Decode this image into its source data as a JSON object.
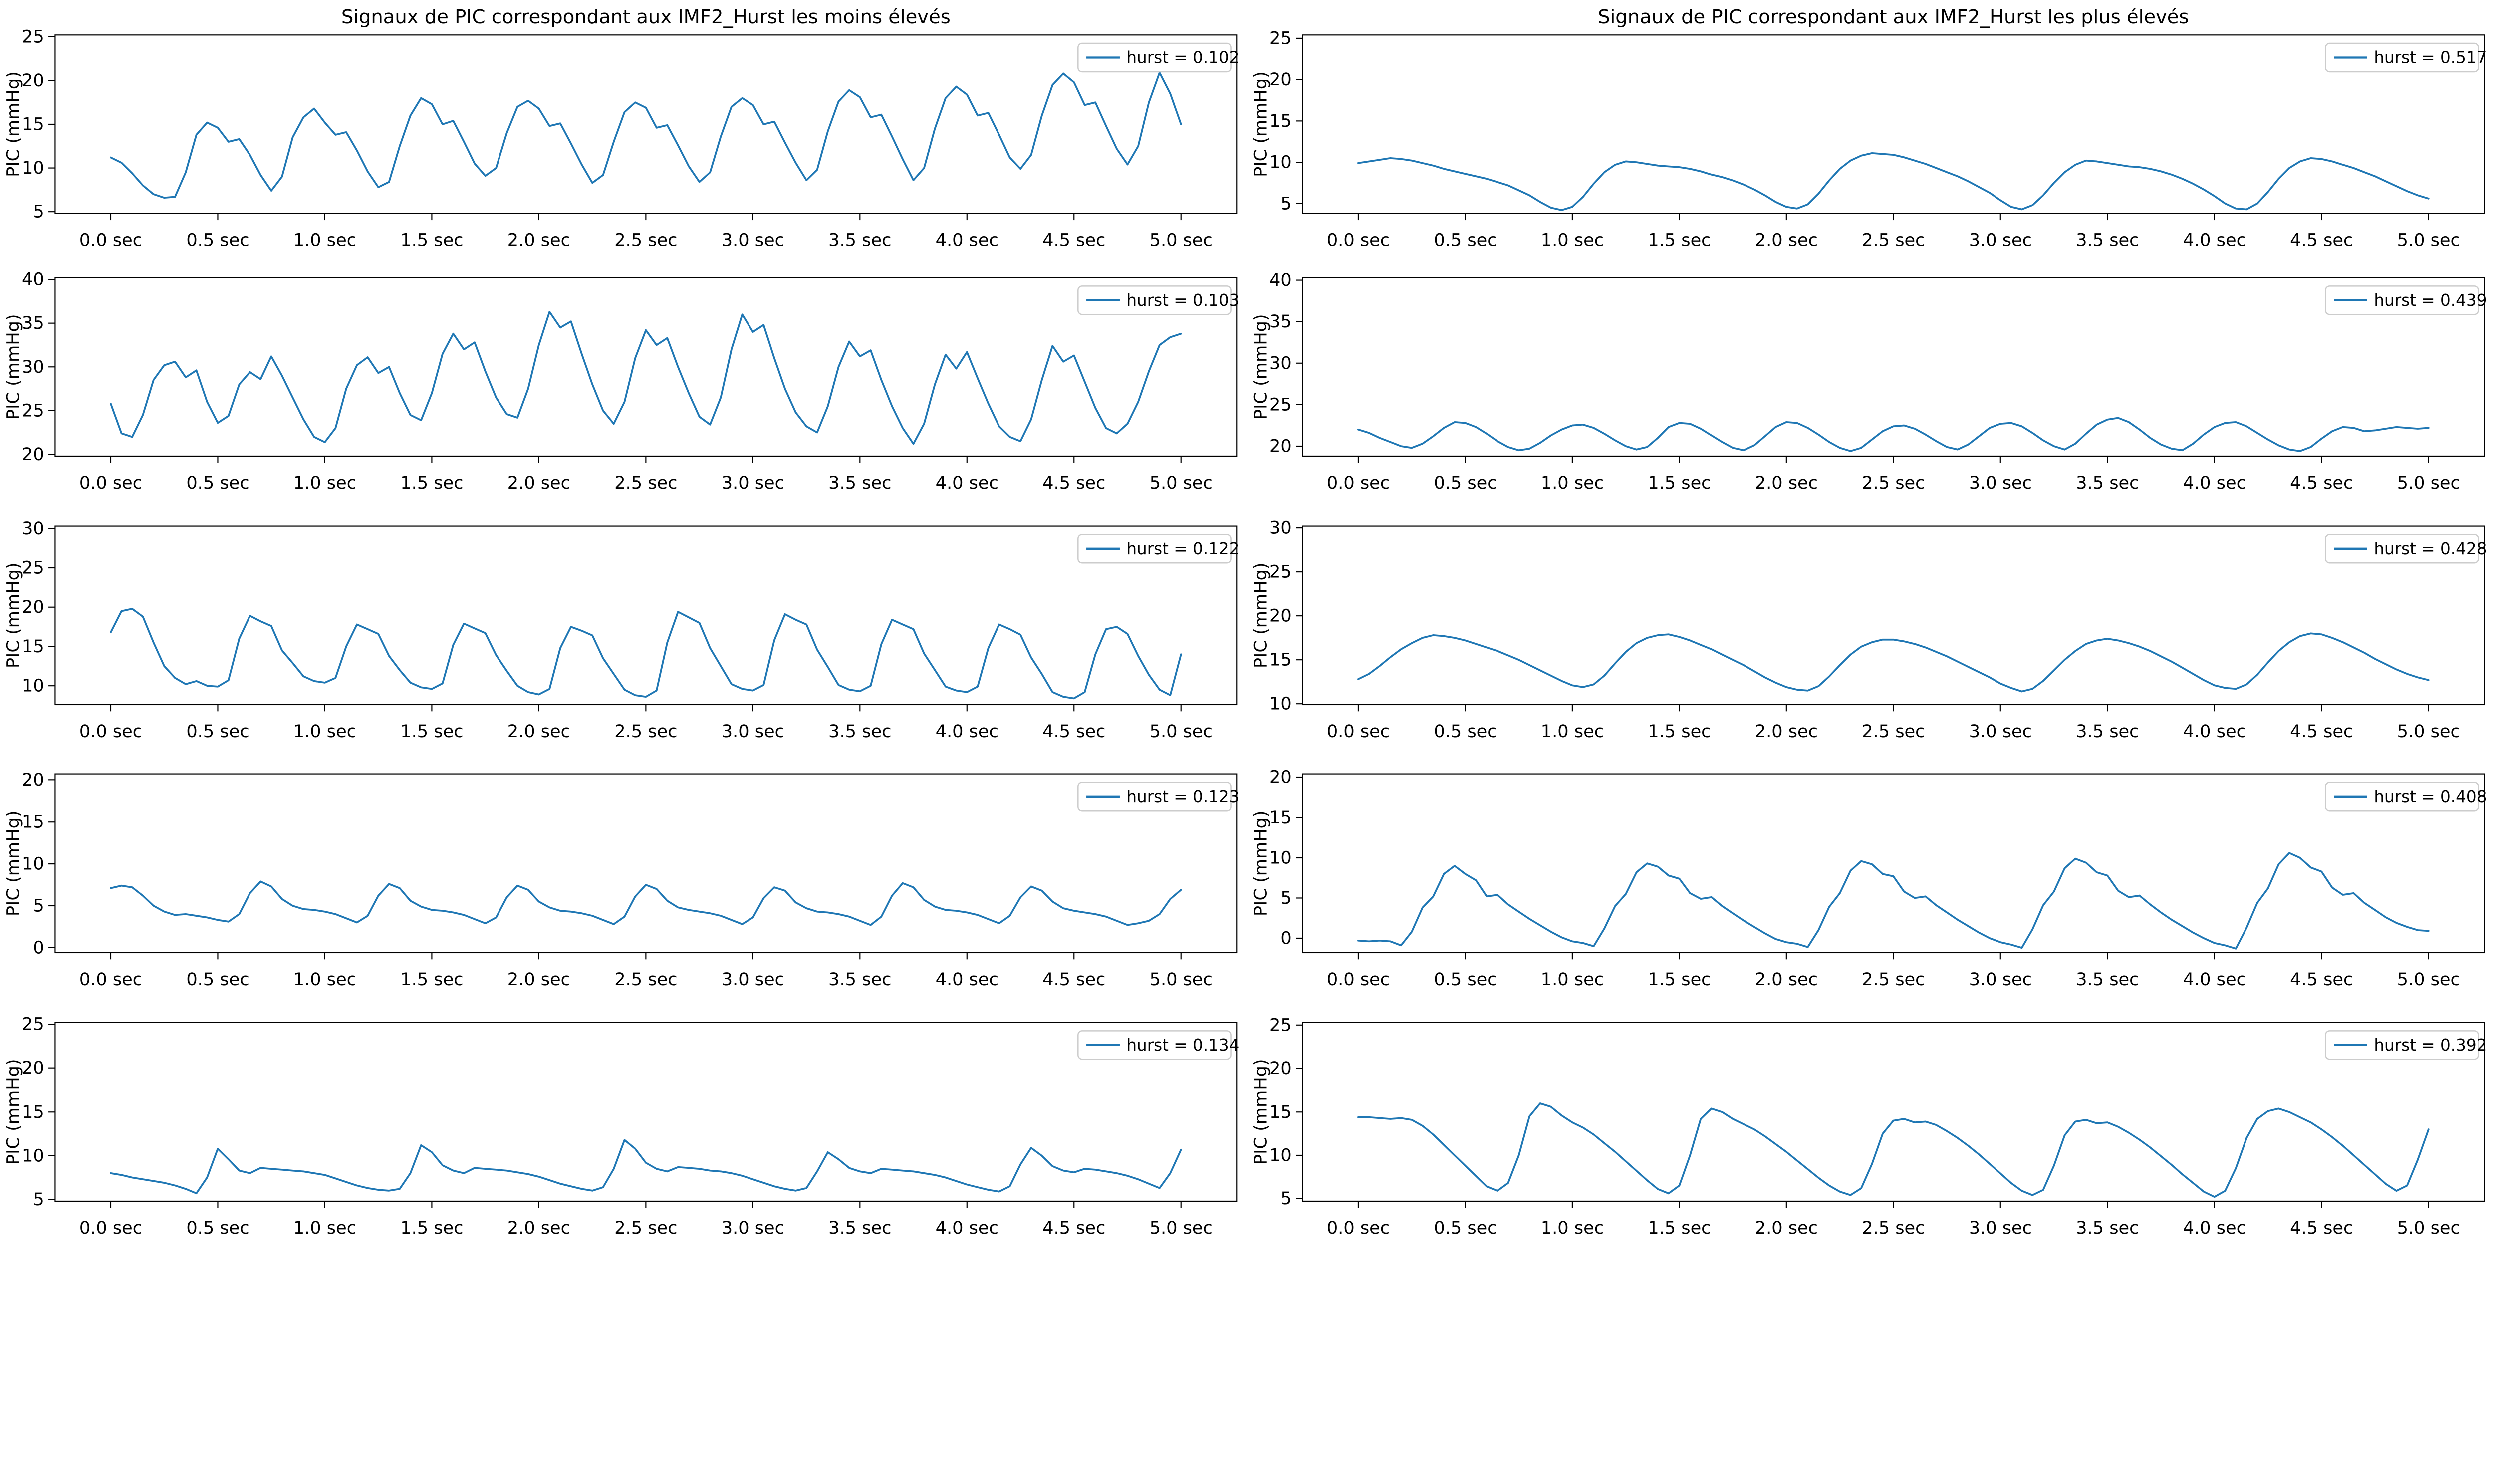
{
  "figure": {
    "background": "#ffffff",
    "text_color": "#000000",
    "line_color": "#1f77b4",
    "legend_border_color": "#cccccc",
    "legend_position": "upper right",
    "grid": false,
    "ylabel": "PIC  (mmHg)",
    "xtick_labels": [
      "0.0 sec",
      "0.5 sec",
      "1.0 sec",
      "1.5 sec",
      "2.0 sec",
      "2.5 sec",
      "3.0 sec",
      "3.5 sec",
      "4.0 sec",
      "4.5 sec",
      "5.0 sec"
    ],
    "xtick_values": [
      0,
      0.5,
      1,
      1.5,
      2,
      2.5,
      3,
      3.5,
      4,
      4.5,
      5
    ],
    "columns": [
      {
        "title": "Signaux de PIC correspondant  aux IMF2_Hurst les moins élevés"
      },
      {
        "title": "Signaux de PIC correspondant aux IMF2_Hurst les plus élevés"
      }
    ]
  },
  "chart_data": [
    {
      "type": "line",
      "column": 0,
      "row": 0,
      "legend": "hurst = 0.102",
      "hurst": 0.102,
      "ylabel": "PIC  (mmHg)",
      "yticks": [
        5,
        10,
        15,
        20,
        25
      ],
      "ylim": [
        4.8,
        25.2
      ],
      "xlim": [
        -0.26,
        5.26
      ],
      "x_start": 0,
      "x_step": 0.05,
      "x_unit": "sec",
      "y_mmHg": [
        11.2,
        10.6,
        9.4,
        8.0,
        7.0,
        6.6,
        6.7,
        9.5,
        13.8,
        15.2,
        14.6,
        13.0,
        13.3,
        11.5,
        9.2,
        7.4,
        9.0,
        13.5,
        15.8,
        16.8,
        15.2,
        13.8,
        14.1,
        12.0,
        9.6,
        7.8,
        8.4,
        12.5,
        16.0,
        18.0,
        17.3,
        15.0,
        15.4,
        13.0,
        10.5,
        9.1,
        10.0,
        14.0,
        17.0,
        17.7,
        16.8,
        14.8,
        15.1,
        12.8,
        10.4,
        8.3,
        9.2,
        13.0,
        16.4,
        17.5,
        16.9,
        14.6,
        14.9,
        12.6,
        10.2,
        8.4,
        9.5,
        13.6,
        17.0,
        18.0,
        17.2,
        15.0,
        15.3,
        12.9,
        10.6,
        8.6,
        9.8,
        14.2,
        17.6,
        18.9,
        18.1,
        15.8,
        16.1,
        13.6,
        11.0,
        8.6,
        10.0,
        14.5,
        18.0,
        19.3,
        18.4,
        16.0,
        16.3,
        13.8,
        11.2,
        9.9,
        11.5,
        16.0,
        19.5,
        20.8,
        19.8,
        17.2,
        17.5,
        14.8,
        12.2,
        10.4,
        12.5,
        17.5,
        20.9,
        18.5,
        15.0
      ]
    },
    {
      "type": "line",
      "column": 0,
      "row": 1,
      "legend": "hurst = 0.103",
      "hurst": 0.103,
      "ylabel": "PIC  (mmHg)",
      "yticks": [
        20,
        25,
        30,
        35,
        40
      ],
      "ylim": [
        19.8,
        40.2
      ],
      "xlim": [
        -0.26,
        5.26
      ],
      "x_start": 0,
      "x_step": 0.05,
      "x_unit": "sec",
      "y_mmHg": [
        25.8,
        22.4,
        22.0,
        24.5,
        28.5,
        30.2,
        30.6,
        28.8,
        29.6,
        26.0,
        23.6,
        24.4,
        28.0,
        29.4,
        28.6,
        31.2,
        29.0,
        26.5,
        24.0,
        22.0,
        21.4,
        23.0,
        27.5,
        30.2,
        31.1,
        29.3,
        30.0,
        27.0,
        24.5,
        23.9,
        27.0,
        31.5,
        33.8,
        32.0,
        32.8,
        29.5,
        26.5,
        24.6,
        24.2,
        27.5,
        32.5,
        36.3,
        34.5,
        35.2,
        31.5,
        28.0,
        25.0,
        23.5,
        26.0,
        31.0,
        34.2,
        32.5,
        33.3,
        30.0,
        27.0,
        24.3,
        23.4,
        26.5,
        32.0,
        36.0,
        34.0,
        34.8,
        31.0,
        27.5,
        24.8,
        23.2,
        22.5,
        25.5,
        30.0,
        32.9,
        31.2,
        31.9,
        28.5,
        25.5,
        23.0,
        21.2,
        23.5,
        28.0,
        31.4,
        29.8,
        31.7,
        28.7,
        25.8,
        23.2,
        22.0,
        21.5,
        24.0,
        28.5,
        32.4,
        30.6,
        31.3,
        28.3,
        25.3,
        23.0,
        22.4,
        23.5,
        26.0,
        29.5,
        32.5,
        33.4,
        33.8
      ]
    },
    {
      "type": "line",
      "column": 0,
      "row": 2,
      "legend": "hurst = 0.122",
      "hurst": 0.122,
      "ylabel": "PIC  (mmHg)",
      "yticks": [
        10,
        15,
        20,
        25,
        30
      ],
      "ylim": [
        7.6,
        30.3
      ],
      "xlim": [
        -0.26,
        5.26
      ],
      "x_start": 0,
      "x_step": 0.05,
      "x_unit": "sec",
      "y_mmHg": [
        16.8,
        19.5,
        19.8,
        18.8,
        15.5,
        12.5,
        11.0,
        10.2,
        10.6,
        10.0,
        9.9,
        10.7,
        16.0,
        18.9,
        18.2,
        17.6,
        14.5,
        12.9,
        11.2,
        10.6,
        10.4,
        11.0,
        15.0,
        17.8,
        17.2,
        16.6,
        13.8,
        12.0,
        10.4,
        9.8,
        9.6,
        10.3,
        15.2,
        17.9,
        17.3,
        16.7,
        13.9,
        11.9,
        10.0,
        9.2,
        8.9,
        9.6,
        14.8,
        17.5,
        17.0,
        16.4,
        13.5,
        11.5,
        9.5,
        8.8,
        8.6,
        9.4,
        15.5,
        19.4,
        18.7,
        18.0,
        14.8,
        12.5,
        10.2,
        9.6,
        9.4,
        10.1,
        15.8,
        19.1,
        18.4,
        17.8,
        14.6,
        12.4,
        10.1,
        9.5,
        9.3,
        10.0,
        15.3,
        18.4,
        17.8,
        17.2,
        14.1,
        12.0,
        9.9,
        9.4,
        9.2,
        9.9,
        14.8,
        17.8,
        17.2,
        16.5,
        13.6,
        11.5,
        9.2,
        8.6,
        8.4,
        9.2,
        14.0,
        17.2,
        17.5,
        16.6,
        13.8,
        11.4,
        9.5,
        8.8,
        14.0
      ]
    },
    {
      "type": "line",
      "column": 0,
      "row": 3,
      "legend": "hurst = 0.123",
      "hurst": 0.123,
      "ylabel": "PIC  (mmHg)",
      "yticks": [
        0,
        5,
        10,
        15,
        20
      ],
      "ylim": [
        -0.6,
        20.7
      ],
      "xlim": [
        -0.26,
        5.26
      ],
      "x_start": 0,
      "x_step": 0.05,
      "x_unit": "sec",
      "y_mmHg": [
        7.1,
        7.4,
        7.2,
        6.2,
        5.0,
        4.3,
        3.9,
        4.0,
        3.8,
        3.6,
        3.3,
        3.1,
        4.0,
        6.5,
        7.9,
        7.3,
        5.8,
        5.0,
        4.6,
        4.5,
        4.3,
        4.0,
        3.5,
        3.0,
        3.8,
        6.2,
        7.6,
        7.1,
        5.6,
        4.9,
        4.5,
        4.4,
        4.2,
        3.9,
        3.4,
        2.9,
        3.6,
        6.0,
        7.4,
        6.9,
        5.5,
        4.8,
        4.4,
        4.3,
        4.1,
        3.8,
        3.3,
        2.8,
        3.7,
        6.1,
        7.5,
        7.0,
        5.6,
        4.8,
        4.5,
        4.3,
        4.1,
        3.8,
        3.3,
        2.8,
        3.6,
        5.9,
        7.2,
        6.8,
        5.4,
        4.7,
        4.3,
        4.2,
        4.0,
        3.7,
        3.2,
        2.7,
        3.7,
        6.2,
        7.7,
        7.2,
        5.7,
        4.9,
        4.5,
        4.4,
        4.2,
        3.9,
        3.4,
        2.9,
        3.8,
        6.0,
        7.3,
        6.8,
        5.5,
        4.7,
        4.4,
        4.2,
        4.0,
        3.7,
        3.2,
        2.7,
        2.9,
        3.2,
        4.0,
        5.8,
        6.9
      ]
    },
    {
      "type": "line",
      "column": 0,
      "row": 4,
      "legend": "hurst = 0.134",
      "hurst": 0.134,
      "ylabel": "PIC  (mmHg)",
      "yticks": [
        5,
        10,
        15,
        20,
        25
      ],
      "ylim": [
        4.8,
        25.2
      ],
      "xlim": [
        -0.26,
        5.26
      ],
      "x_start": 0,
      "x_step": 0.05,
      "x_unit": "sec",
      "y_mmHg": [
        8.0,
        7.8,
        7.5,
        7.3,
        7.1,
        6.9,
        6.6,
        6.2,
        5.7,
        7.5,
        10.8,
        9.6,
        8.3,
        8.0,
        8.6,
        8.5,
        8.4,
        8.3,
        8.2,
        8.0,
        7.8,
        7.4,
        7.0,
        6.6,
        6.3,
        6.1,
        6.0,
        6.2,
        8.0,
        11.2,
        10.4,
        8.9,
        8.3,
        8.0,
        8.6,
        8.5,
        8.4,
        8.3,
        8.1,
        7.9,
        7.6,
        7.2,
        6.8,
        6.5,
        6.2,
        6.0,
        6.4,
        8.5,
        11.8,
        10.8,
        9.2,
        8.5,
        8.2,
        8.7,
        8.6,
        8.5,
        8.3,
        8.2,
        8.0,
        7.7,
        7.3,
        6.9,
        6.5,
        6.2,
        6.0,
        6.3,
        8.2,
        10.4,
        9.6,
        8.6,
        8.2,
        8.0,
        8.5,
        8.4,
        8.3,
        8.2,
        8.0,
        7.8,
        7.5,
        7.1,
        6.7,
        6.4,
        6.1,
        5.9,
        6.5,
        9.0,
        10.9,
        10.0,
        8.8,
        8.3,
        8.1,
        8.5,
        8.4,
        8.2,
        8.0,
        7.7,
        7.3,
        6.8,
        6.3,
        8.0,
        10.7
      ]
    },
    {
      "type": "line",
      "column": 1,
      "row": 0,
      "legend": "hurst = 0.517",
      "hurst": 0.517,
      "ylabel": "PIC  (mmHg)",
      "yticks": [
        5,
        10,
        15,
        20,
        25
      ],
      "ylim": [
        3.8,
        25.4
      ],
      "xlim": [
        -0.26,
        5.26
      ],
      "x_start": 0,
      "x_step": 0.05,
      "x_unit": "sec",
      "y_mmHg": [
        9.9,
        10.1,
        10.3,
        10.5,
        10.4,
        10.2,
        9.9,
        9.6,
        9.2,
        8.9,
        8.6,
        8.3,
        8.0,
        7.6,
        7.2,
        6.6,
        6.0,
        5.2,
        4.5,
        4.2,
        4.6,
        5.8,
        7.4,
        8.8,
        9.7,
        10.1,
        10.0,
        9.8,
        9.6,
        9.5,
        9.4,
        9.2,
        8.9,
        8.5,
        8.2,
        7.8,
        7.3,
        6.7,
        6.0,
        5.2,
        4.6,
        4.4,
        4.9,
        6.2,
        7.8,
        9.2,
        10.2,
        10.8,
        11.1,
        11.0,
        10.9,
        10.6,
        10.2,
        9.8,
        9.3,
        8.8,
        8.3,
        7.7,
        7.0,
        6.3,
        5.4,
        4.6,
        4.3,
        4.8,
        6.0,
        7.5,
        8.8,
        9.7,
        10.2,
        10.1,
        9.9,
        9.7,
        9.5,
        9.4,
        9.2,
        8.9,
        8.5,
        8.0,
        7.4,
        6.7,
        5.9,
        5.0,
        4.4,
        4.3,
        5.0,
        6.4,
        8.0,
        9.3,
        10.1,
        10.5,
        10.4,
        10.1,
        9.7,
        9.3,
        8.8,
        8.3,
        7.7,
        7.1,
        6.5,
        6.0,
        5.6
      ]
    },
    {
      "type": "line",
      "column": 1,
      "row": 1,
      "legend": "hurst = 0.439",
      "hurst": 0.439,
      "ylabel": "PIC  (mmHg)",
      "yticks": [
        20,
        25,
        30,
        35,
        40
      ],
      "ylim": [
        18.8,
        40.3
      ],
      "xlim": [
        -0.26,
        5.26
      ],
      "x_start": 0,
      "x_step": 0.05,
      "x_unit": "sec",
      "y_mmHg": [
        22.0,
        21.6,
        21.0,
        20.5,
        20.0,
        19.8,
        20.3,
        21.2,
        22.2,
        22.9,
        22.8,
        22.3,
        21.5,
        20.6,
        19.9,
        19.5,
        19.7,
        20.4,
        21.3,
        22.0,
        22.5,
        22.6,
        22.2,
        21.5,
        20.7,
        20.0,
        19.6,
        19.9,
        21.0,
        22.3,
        22.8,
        22.7,
        22.1,
        21.3,
        20.5,
        19.8,
        19.5,
        20.1,
        21.2,
        22.3,
        22.9,
        22.8,
        22.2,
        21.4,
        20.5,
        19.8,
        19.4,
        19.8,
        20.8,
        21.8,
        22.4,
        22.5,
        22.1,
        21.4,
        20.6,
        19.9,
        19.6,
        20.2,
        21.2,
        22.2,
        22.7,
        22.8,
        22.4,
        21.6,
        20.7,
        20.0,
        19.6,
        20.3,
        21.5,
        22.6,
        23.2,
        23.4,
        22.9,
        22.0,
        21.0,
        20.2,
        19.7,
        19.5,
        20.3,
        21.4,
        22.3,
        22.8,
        22.9,
        22.4,
        21.6,
        20.8,
        20.1,
        19.6,
        19.4,
        19.9,
        20.9,
        21.8,
        22.3,
        22.2,
        21.8,
        21.9,
        22.1,
        22.3,
        22.2,
        22.1,
        22.2
      ]
    },
    {
      "type": "line",
      "column": 1,
      "row": 2,
      "legend": "hurst = 0.428",
      "hurst": 0.428,
      "ylabel": "PIC  (mmHg)",
      "yticks": [
        10,
        15,
        20,
        25,
        30
      ],
      "ylim": [
        9.9,
        30.2
      ],
      "xlim": [
        -0.26,
        5.26
      ],
      "x_start": 0,
      "x_step": 0.05,
      "x_unit": "sec",
      "y_mmHg": [
        12.8,
        13.4,
        14.3,
        15.3,
        16.2,
        16.9,
        17.5,
        17.8,
        17.7,
        17.5,
        17.2,
        16.8,
        16.4,
        16.0,
        15.5,
        15.0,
        14.4,
        13.8,
        13.2,
        12.6,
        12.1,
        11.9,
        12.2,
        13.2,
        14.6,
        15.9,
        16.9,
        17.5,
        17.8,
        17.9,
        17.6,
        17.2,
        16.7,
        16.2,
        15.6,
        15.0,
        14.4,
        13.7,
        13.0,
        12.4,
        11.9,
        11.6,
        11.5,
        12.0,
        13.1,
        14.4,
        15.6,
        16.5,
        17.0,
        17.3,
        17.3,
        17.1,
        16.8,
        16.4,
        15.9,
        15.4,
        14.8,
        14.2,
        13.6,
        13.0,
        12.3,
        11.8,
        11.4,
        11.7,
        12.6,
        13.8,
        15.0,
        16.0,
        16.8,
        17.2,
        17.4,
        17.2,
        16.9,
        16.5,
        16.0,
        15.4,
        14.8,
        14.1,
        13.4,
        12.7,
        12.1,
        11.8,
        11.7,
        12.2,
        13.3,
        14.7,
        16.0,
        17.0,
        17.7,
        18.0,
        17.9,
        17.5,
        17.0,
        16.4,
        15.8,
        15.1,
        14.5,
        13.9,
        13.4,
        13.0,
        12.7
      ]
    },
    {
      "type": "line",
      "column": 1,
      "row": 3,
      "legend": "hurst = 0.408",
      "hurst": 0.408,
      "ylabel": "PIC  (mmHg)",
      "yticks": [
        0,
        5,
        10,
        15,
        20
      ],
      "ylim": [
        -1.8,
        20.4
      ],
      "xlim": [
        -0.26,
        5.26
      ],
      "x_start": 0,
      "x_step": 0.05,
      "x_unit": "sec",
      "y_mmHg": [
        -0.3,
        -0.4,
        -0.3,
        -0.4,
        -0.9,
        0.8,
        3.8,
        5.2,
        8.0,
        9.0,
        8.0,
        7.2,
        5.2,
        5.4,
        4.2,
        3.3,
        2.4,
        1.6,
        0.8,
        0.1,
        -0.4,
        -0.6,
        -1.0,
        1.2,
        4.0,
        5.5,
        8.2,
        9.3,
        8.9,
        7.8,
        7.4,
        5.6,
        4.9,
        5.1,
        4.0,
        3.1,
        2.2,
        1.4,
        0.6,
        -0.1,
        -0.5,
        -0.7,
        -1.1,
        1.0,
        3.9,
        5.6,
        8.4,
        9.6,
        9.2,
        8.0,
        7.7,
        5.8,
        5.0,
        5.2,
        4.1,
        3.2,
        2.3,
        1.5,
        0.7,
        0.0,
        -0.5,
        -0.8,
        -1.2,
        1.1,
        4.1,
        5.8,
        8.7,
        9.9,
        9.4,
        8.2,
        7.8,
        5.9,
        5.1,
        5.3,
        4.2,
        3.2,
        2.3,
        1.5,
        0.7,
        0.0,
        -0.6,
        -0.9,
        -1.3,
        1.3,
        4.4,
        6.2,
        9.2,
        10.6,
        10.0,
        8.8,
        8.3,
        6.3,
        5.4,
        5.6,
        4.4,
        3.5,
        2.6,
        1.9,
        1.4,
        1.0,
        0.9
      ]
    },
    {
      "type": "line",
      "column": 1,
      "row": 4,
      "legend": "hurst = 0.392",
      "hurst": 0.392,
      "ylabel": "PIC  (mmHg)",
      "yticks": [
        5,
        10,
        15,
        20,
        25
      ],
      "ylim": [
        4.7,
        25.3
      ],
      "xlim": [
        -0.26,
        5.26
      ],
      "x_start": 0,
      "x_step": 0.05,
      "x_unit": "sec",
      "y_mmHg": [
        14.4,
        14.4,
        14.3,
        14.2,
        14.3,
        14.1,
        13.4,
        12.4,
        11.2,
        10.0,
        8.8,
        7.6,
        6.4,
        5.9,
        6.8,
        10.0,
        14.5,
        16.0,
        15.6,
        14.6,
        13.8,
        13.2,
        12.4,
        11.4,
        10.4,
        9.3,
        8.2,
        7.1,
        6.1,
        5.6,
        6.5,
        10.0,
        14.2,
        15.4,
        15.0,
        14.2,
        13.6,
        13.0,
        12.2,
        11.3,
        10.4,
        9.4,
        8.4,
        7.4,
        6.5,
        5.8,
        5.4,
        6.2,
        9.0,
        12.5,
        14.0,
        14.2,
        13.8,
        13.9,
        13.5,
        12.8,
        12.0,
        11.1,
        10.1,
        9.0,
        7.9,
        6.8,
        5.9,
        5.4,
        6.0,
        8.8,
        12.3,
        13.9,
        14.1,
        13.7,
        13.8,
        13.3,
        12.6,
        11.8,
        10.9,
        9.9,
        8.9,
        7.8,
        6.8,
        5.8,
        5.2,
        5.9,
        8.5,
        12.0,
        14.2,
        15.1,
        15.4,
        15.0,
        14.4,
        13.8,
        13.0,
        12.1,
        11.1,
        10.0,
        8.9,
        7.8,
        6.7,
        5.9,
        6.5,
        9.5,
        13.0
      ]
    }
  ]
}
